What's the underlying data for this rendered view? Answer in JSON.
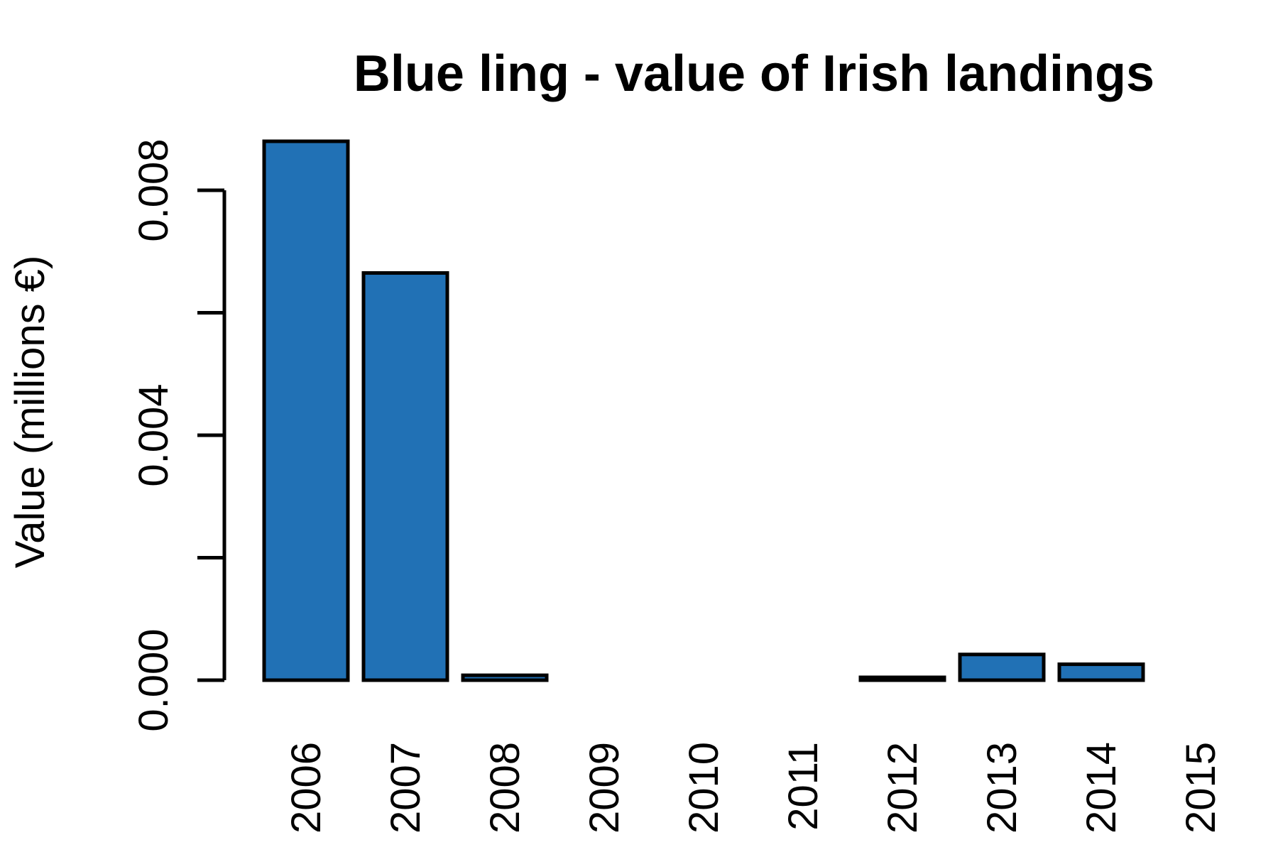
{
  "chart_data": {
    "type": "bar",
    "title": "Blue ling - value of Irish landings",
    "xlabel": "",
    "ylabel": "Value (millions €)",
    "categories": [
      "2006",
      "2007",
      "2008",
      "2009",
      "2010",
      "2011",
      "2012",
      "2013",
      "2014",
      "2015"
    ],
    "values": [
      0.0088,
      0.00665,
      8e-05,
      0,
      0,
      0,
      4e-05,
      0.00042,
      0.00026,
      0
    ],
    "ylim": [
      0,
      0.008
    ],
    "yticks": [
      0,
      0.002,
      0.004,
      0.006,
      0.008
    ],
    "ytick_labels": [
      "0.000",
      "",
      "0.004",
      "",
      "0.008"
    ],
    "bar_color": "#2171b5",
    "grid": false,
    "legend": "none"
  }
}
